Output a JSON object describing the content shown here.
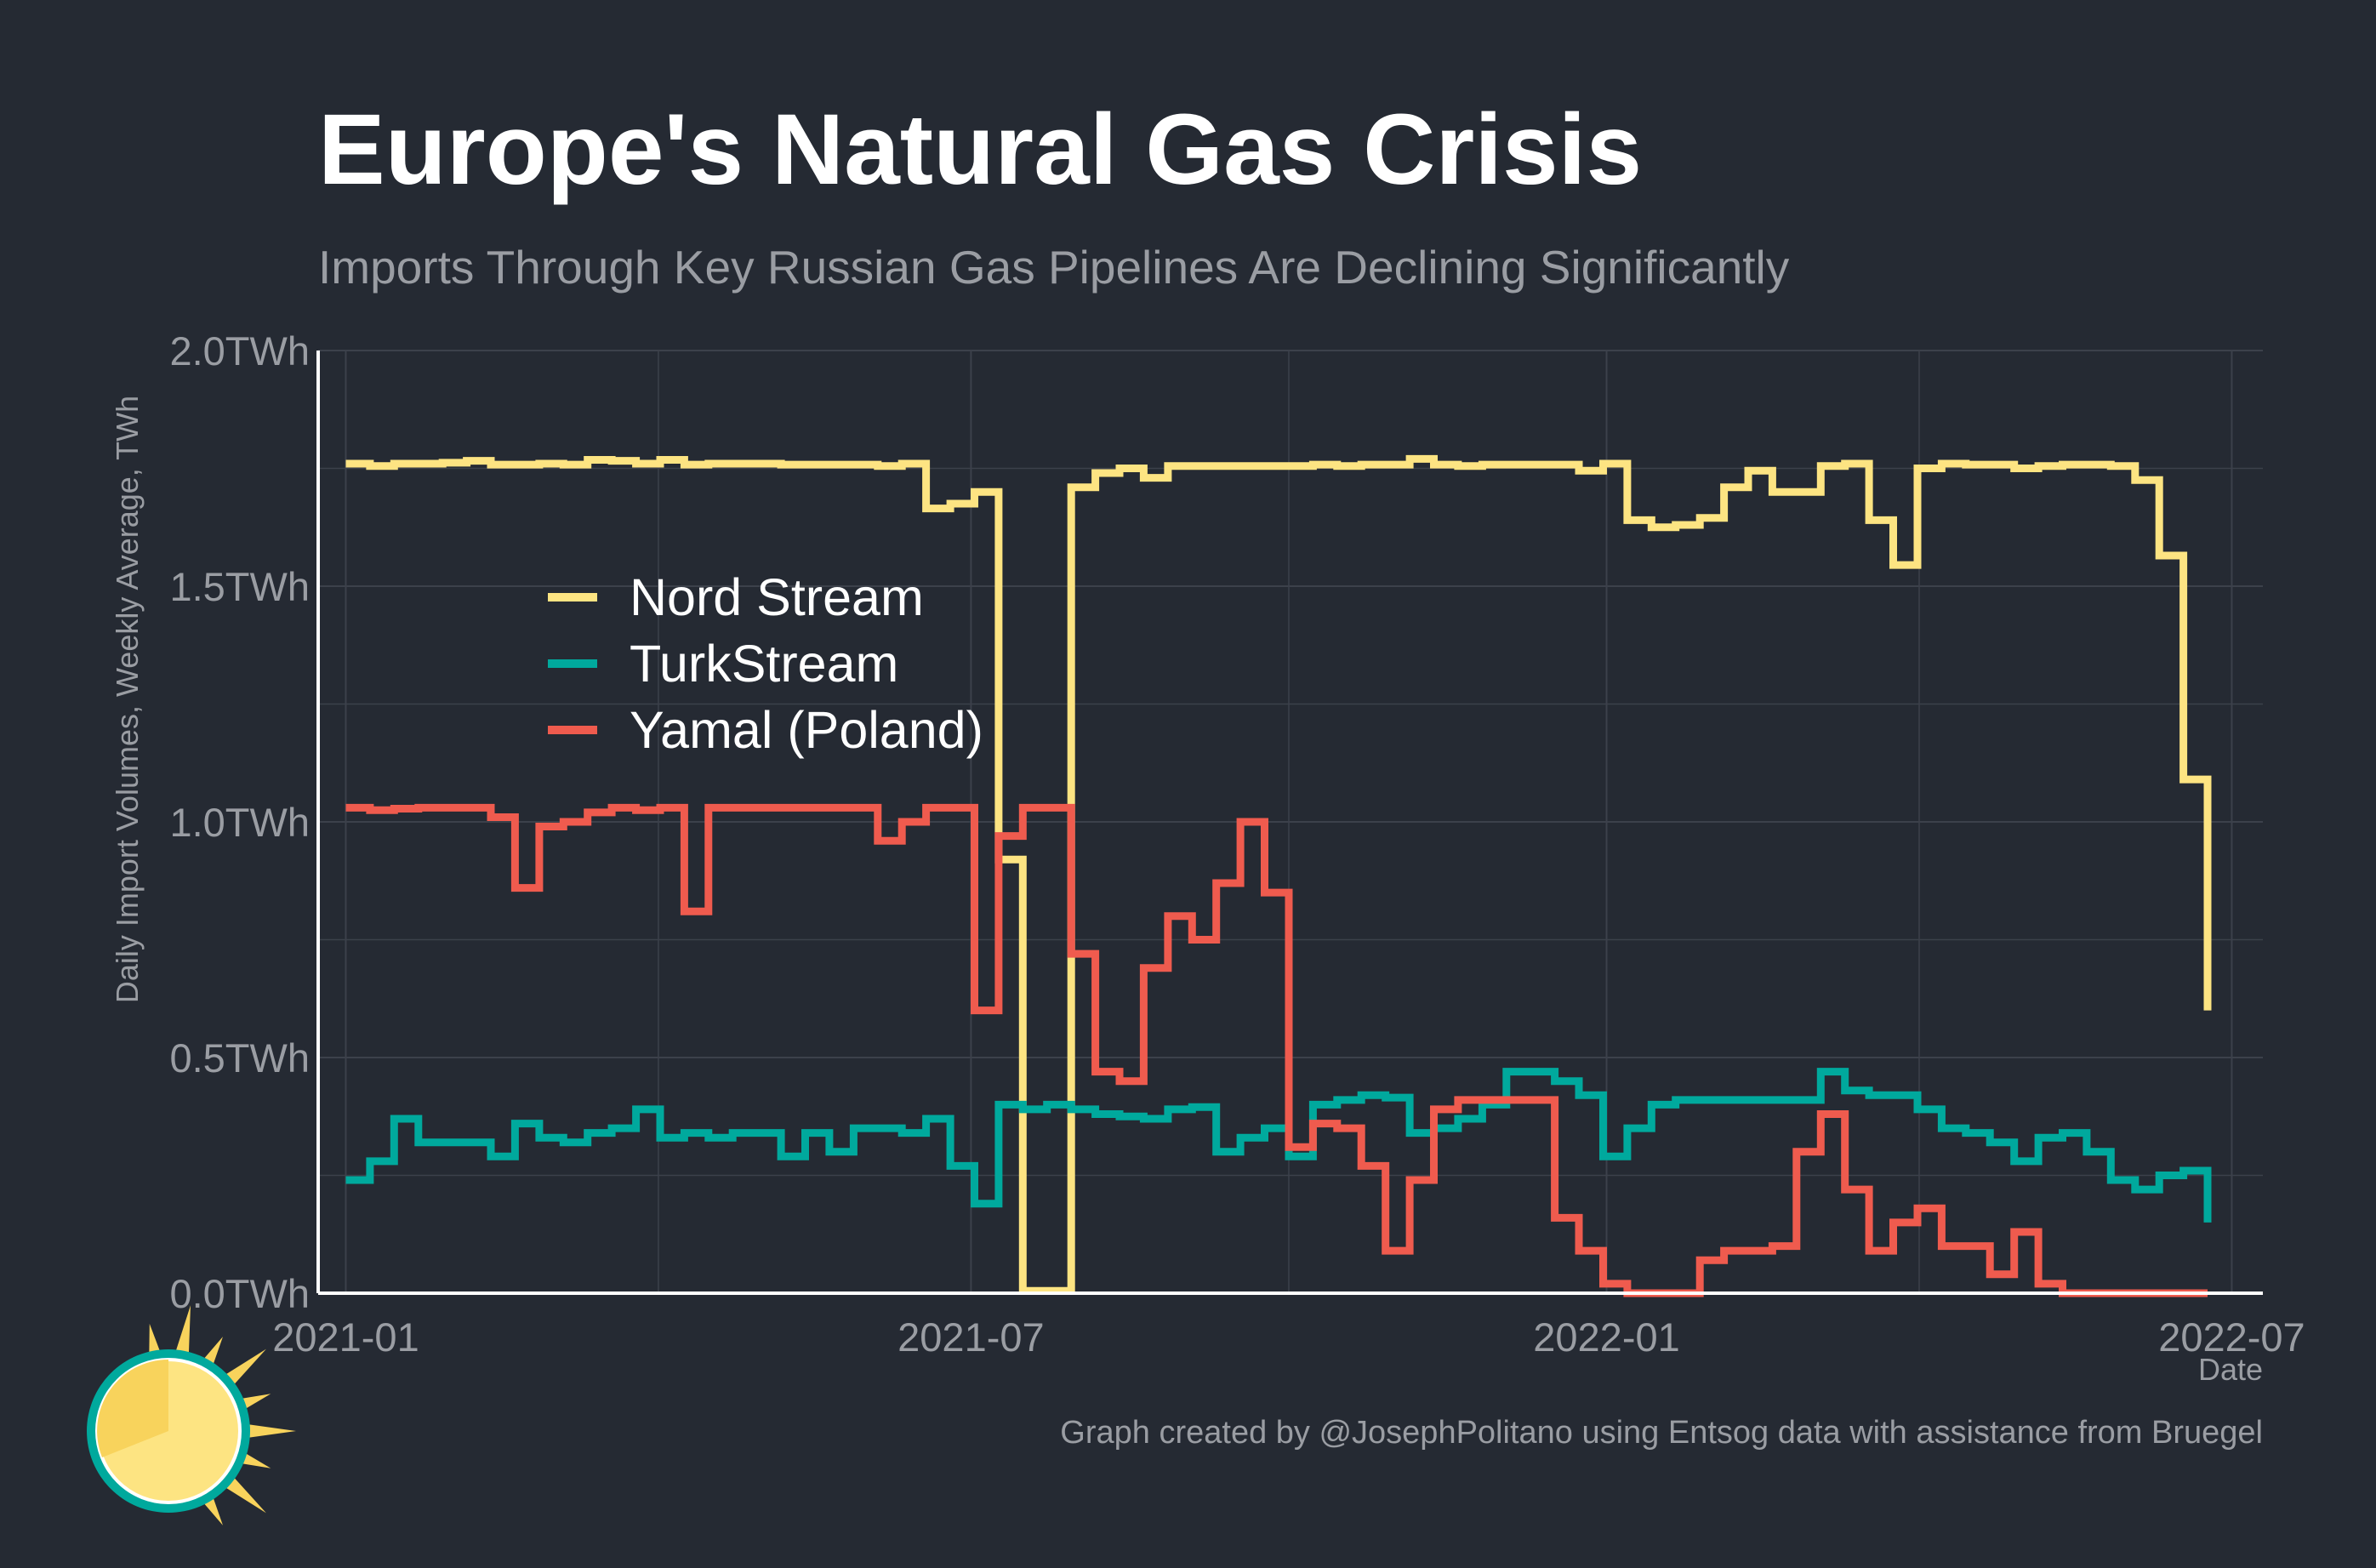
{
  "chart_data": {
    "type": "line",
    "title": "Europe's Natural Gas Crisis",
    "subtitle": "Imports Through Key Russian Gas Pipelines Are Declining Significantly",
    "xlabel": "Date",
    "ylabel": "Daily Import Volumes, Weekly Average, TWh",
    "caption": "Graph created by @JosephPolitano using Entsog data with assistance from Bruegel",
    "ylim": [
      0,
      2.0
    ],
    "xlim": [
      "2020-12-24",
      "2022-07-10"
    ],
    "x_ticks": [
      "2021-01-01",
      "2021-07-01",
      "2022-01-01",
      "2022-07-01"
    ],
    "x_tick_labels": [
      "2021-01",
      "2021-07",
      "2022-01",
      "2022-07"
    ],
    "y_ticks": [
      0,
      0.5,
      1.0,
      1.5,
      2.0
    ],
    "y_tick_labels": [
      "0.0TWh",
      "0.5TWh",
      "1.0TWh",
      "1.5TWh",
      "2.0TWh"
    ],
    "grid": true,
    "legend_position": "inside-left",
    "series": [
      {
        "name": "Nord Stream",
        "color": "#fde482",
        "points": [
          [
            "2021-01-01",
            1.76
          ],
          [
            "2021-01-08",
            1.755
          ],
          [
            "2021-01-15",
            1.76
          ],
          [
            "2021-01-22",
            1.76
          ],
          [
            "2021-01-29",
            1.762
          ],
          [
            "2021-02-05",
            1.766
          ],
          [
            "2021-02-12",
            1.758
          ],
          [
            "2021-02-19",
            1.758
          ],
          [
            "2021-02-26",
            1.76
          ],
          [
            "2021-03-05",
            1.758
          ],
          [
            "2021-03-12",
            1.768
          ],
          [
            "2021-03-19",
            1.766
          ],
          [
            "2021-03-26",
            1.76
          ],
          [
            "2021-04-02",
            1.768
          ],
          [
            "2021-04-09",
            1.758
          ],
          [
            "2021-04-16",
            1.76
          ],
          [
            "2021-04-23",
            1.76
          ],
          [
            "2021-04-30",
            1.76
          ],
          [
            "2021-05-07",
            1.758
          ],
          [
            "2021-05-14",
            1.758
          ],
          [
            "2021-05-21",
            1.758
          ],
          [
            "2021-05-28",
            1.758
          ],
          [
            "2021-06-04",
            1.755
          ],
          [
            "2021-06-11",
            1.76
          ],
          [
            "2021-06-18",
            1.665
          ],
          [
            "2021-06-25",
            1.675
          ],
          [
            "2021-07-02",
            1.7
          ],
          [
            "2021-07-09",
            0.92
          ],
          [
            "2021-07-16",
            0.005
          ],
          [
            "2021-07-23",
            0.005
          ],
          [
            "2021-07-30",
            1.71
          ],
          [
            "2021-08-06",
            1.74
          ],
          [
            "2021-08-13",
            1.75
          ],
          [
            "2021-08-20",
            1.73
          ],
          [
            "2021-08-27",
            1.755
          ],
          [
            "2021-09-03",
            1.755
          ],
          [
            "2021-09-10",
            1.755
          ],
          [
            "2021-09-17",
            1.755
          ],
          [
            "2021-09-24",
            1.755
          ],
          [
            "2021-10-01",
            1.755
          ],
          [
            "2021-10-08",
            1.758
          ],
          [
            "2021-10-15",
            1.755
          ],
          [
            "2021-10-22",
            1.758
          ],
          [
            "2021-10-29",
            1.758
          ],
          [
            "2021-11-05",
            1.77
          ],
          [
            "2021-11-12",
            1.758
          ],
          [
            "2021-11-19",
            1.755
          ],
          [
            "2021-11-26",
            1.758
          ],
          [
            "2021-12-03",
            1.758
          ],
          [
            "2021-12-10",
            1.758
          ],
          [
            "2021-12-17",
            1.758
          ],
          [
            "2021-12-24",
            1.745
          ],
          [
            "2021-12-31",
            1.76
          ],
          [
            "2022-01-07",
            1.64
          ],
          [
            "2022-01-14",
            1.625
          ],
          [
            "2022-01-21",
            1.63
          ],
          [
            "2022-01-28",
            1.645
          ],
          [
            "2022-02-04",
            1.71
          ],
          [
            "2022-02-11",
            1.745
          ],
          [
            "2022-02-18",
            1.7
          ],
          [
            "2022-02-25",
            1.7
          ],
          [
            "2022-03-04",
            1.755
          ],
          [
            "2022-03-11",
            1.76
          ],
          [
            "2022-03-18",
            1.64
          ],
          [
            "2022-03-25",
            1.545
          ],
          [
            "2022-04-01",
            1.75
          ],
          [
            "2022-04-08",
            1.76
          ],
          [
            "2022-04-15",
            1.758
          ],
          [
            "2022-04-22",
            1.758
          ],
          [
            "2022-04-29",
            1.75
          ],
          [
            "2022-05-06",
            1.755
          ],
          [
            "2022-05-13",
            1.758
          ],
          [
            "2022-05-20",
            1.758
          ],
          [
            "2022-05-27",
            1.755
          ],
          [
            "2022-06-03",
            1.725
          ],
          [
            "2022-06-10",
            1.565
          ],
          [
            "2022-06-17",
            1.09
          ],
          [
            "2022-06-24",
            0.6
          ]
        ]
      },
      {
        "name": "TurkStream",
        "color": "#00a99d",
        "points": [
          [
            "2021-01-01",
            0.24
          ],
          [
            "2021-01-08",
            0.28
          ],
          [
            "2021-01-15",
            0.37
          ],
          [
            "2021-01-22",
            0.32
          ],
          [
            "2021-01-29",
            0.32
          ],
          [
            "2021-02-05",
            0.32
          ],
          [
            "2021-02-12",
            0.29
          ],
          [
            "2021-02-19",
            0.36
          ],
          [
            "2021-02-26",
            0.33
          ],
          [
            "2021-03-05",
            0.32
          ],
          [
            "2021-03-12",
            0.34
          ],
          [
            "2021-03-19",
            0.35
          ],
          [
            "2021-03-26",
            0.39
          ],
          [
            "2021-04-02",
            0.33
          ],
          [
            "2021-04-09",
            0.34
          ],
          [
            "2021-04-16",
            0.33
          ],
          [
            "2021-04-23",
            0.34
          ],
          [
            "2021-04-30",
            0.34
          ],
          [
            "2021-05-07",
            0.29
          ],
          [
            "2021-05-14",
            0.34
          ],
          [
            "2021-05-21",
            0.3
          ],
          [
            "2021-05-28",
            0.35
          ],
          [
            "2021-06-04",
            0.35
          ],
          [
            "2021-06-11",
            0.34
          ],
          [
            "2021-06-18",
            0.37
          ],
          [
            "2021-06-25",
            0.27
          ],
          [
            "2021-07-02",
            0.19
          ],
          [
            "2021-07-09",
            0.4
          ],
          [
            "2021-07-16",
            0.39
          ],
          [
            "2021-07-23",
            0.4
          ],
          [
            "2021-07-30",
            0.39
          ],
          [
            "2021-08-06",
            0.38
          ],
          [
            "2021-08-13",
            0.375
          ],
          [
            "2021-08-20",
            0.37
          ],
          [
            "2021-08-27",
            0.39
          ],
          [
            "2021-09-03",
            0.395
          ],
          [
            "2021-09-10",
            0.3
          ],
          [
            "2021-09-17",
            0.33
          ],
          [
            "2021-09-24",
            0.35
          ],
          [
            "2021-10-01",
            0.29
          ],
          [
            "2021-10-08",
            0.4
          ],
          [
            "2021-10-15",
            0.41
          ],
          [
            "2021-10-22",
            0.42
          ],
          [
            "2021-10-29",
            0.415
          ],
          [
            "2021-11-05",
            0.34
          ],
          [
            "2021-11-12",
            0.35
          ],
          [
            "2021-11-19",
            0.37
          ],
          [
            "2021-11-26",
            0.4
          ],
          [
            "2021-12-03",
            0.47
          ],
          [
            "2021-12-10",
            0.47
          ],
          [
            "2021-12-17",
            0.45
          ],
          [
            "2021-12-24",
            0.42
          ],
          [
            "2021-12-31",
            0.29
          ],
          [
            "2022-01-07",
            0.35
          ],
          [
            "2022-01-14",
            0.4
          ],
          [
            "2022-01-21",
            0.41
          ],
          [
            "2022-01-28",
            0.41
          ],
          [
            "2022-02-04",
            0.41
          ],
          [
            "2022-02-11",
            0.41
          ],
          [
            "2022-02-18",
            0.41
          ],
          [
            "2022-02-25",
            0.41
          ],
          [
            "2022-03-04",
            0.47
          ],
          [
            "2022-03-11",
            0.43
          ],
          [
            "2022-03-18",
            0.42
          ],
          [
            "2022-03-25",
            0.42
          ],
          [
            "2022-04-01",
            0.39
          ],
          [
            "2022-04-08",
            0.35
          ],
          [
            "2022-04-15",
            0.34
          ],
          [
            "2022-04-22",
            0.32
          ],
          [
            "2022-04-29",
            0.28
          ],
          [
            "2022-05-06",
            0.33
          ],
          [
            "2022-05-13",
            0.34
          ],
          [
            "2022-05-20",
            0.3
          ],
          [
            "2022-05-27",
            0.24
          ],
          [
            "2022-06-03",
            0.22
          ],
          [
            "2022-06-10",
            0.25
          ],
          [
            "2022-06-17",
            0.26
          ],
          [
            "2022-06-24",
            0.15
          ]
        ]
      },
      {
        "name": "Yamal (Poland)",
        "color": "#ef5b4e",
        "points": [
          [
            "2021-01-01",
            1.03
          ],
          [
            "2021-01-08",
            1.025
          ],
          [
            "2021-01-15",
            1.028
          ],
          [
            "2021-01-22",
            1.03
          ],
          [
            "2021-01-29",
            1.03
          ],
          [
            "2021-02-05",
            1.03
          ],
          [
            "2021-02-12",
            1.01
          ],
          [
            "2021-02-19",
            0.86
          ],
          [
            "2021-02-26",
            0.99
          ],
          [
            "2021-03-05",
            1.0
          ],
          [
            "2021-03-12",
            1.02
          ],
          [
            "2021-03-19",
            1.03
          ],
          [
            "2021-03-26",
            1.025
          ],
          [
            "2021-04-02",
            1.03
          ],
          [
            "2021-04-09",
            0.81
          ],
          [
            "2021-04-16",
            1.03
          ],
          [
            "2021-04-23",
            1.03
          ],
          [
            "2021-04-30",
            1.03
          ],
          [
            "2021-05-07",
            1.03
          ],
          [
            "2021-05-14",
            1.03
          ],
          [
            "2021-05-21",
            1.03
          ],
          [
            "2021-05-28",
            1.03
          ],
          [
            "2021-06-04",
            0.96
          ],
          [
            "2021-06-11",
            1.0
          ],
          [
            "2021-06-18",
            1.03
          ],
          [
            "2021-06-25",
            1.03
          ],
          [
            "2021-07-02",
            0.6
          ],
          [
            "2021-07-09",
            0.97
          ],
          [
            "2021-07-16",
            1.03
          ],
          [
            "2021-07-23",
            1.03
          ],
          [
            "2021-07-30",
            0.72
          ],
          [
            "2021-08-06",
            0.47
          ],
          [
            "2021-08-13",
            0.45
          ],
          [
            "2021-08-20",
            0.69
          ],
          [
            "2021-08-27",
            0.8
          ],
          [
            "2021-09-03",
            0.75
          ],
          [
            "2021-09-10",
            0.87
          ],
          [
            "2021-09-17",
            1.0
          ],
          [
            "2021-09-24",
            0.85
          ],
          [
            "2021-10-01",
            0.31
          ],
          [
            "2021-10-08",
            0.36
          ],
          [
            "2021-10-15",
            0.35
          ],
          [
            "2021-10-22",
            0.27
          ],
          [
            "2021-10-29",
            0.09
          ],
          [
            "2021-11-05",
            0.24
          ],
          [
            "2021-11-12",
            0.39
          ],
          [
            "2021-11-19",
            0.41
          ],
          [
            "2021-11-26",
            0.41
          ],
          [
            "2021-12-03",
            0.41
          ],
          [
            "2021-12-10",
            0.41
          ],
          [
            "2021-12-17",
            0.16
          ],
          [
            "2021-12-24",
            0.09
          ],
          [
            "2021-12-31",
            0.02
          ],
          [
            "2022-01-07",
            0.0
          ],
          [
            "2022-01-14",
            0.0
          ],
          [
            "2022-01-21",
            0.0
          ],
          [
            "2022-01-28",
            0.07
          ],
          [
            "2022-02-04",
            0.09
          ],
          [
            "2022-02-11",
            0.09
          ],
          [
            "2022-02-18",
            0.1
          ],
          [
            "2022-02-25",
            0.3
          ],
          [
            "2022-03-04",
            0.38
          ],
          [
            "2022-03-11",
            0.22
          ],
          [
            "2022-03-18",
            0.09
          ],
          [
            "2022-03-25",
            0.15
          ],
          [
            "2022-04-01",
            0.18
          ],
          [
            "2022-04-08",
            0.1
          ],
          [
            "2022-04-15",
            0.1
          ],
          [
            "2022-04-22",
            0.04
          ],
          [
            "2022-04-29",
            0.13
          ],
          [
            "2022-05-06",
            0.02
          ],
          [
            "2022-05-13",
            0.0
          ],
          [
            "2022-05-20",
            0.0
          ],
          [
            "2022-05-27",
            0.0
          ],
          [
            "2022-06-03",
            0.0
          ],
          [
            "2022-06-10",
            0.0
          ],
          [
            "2022-06-17",
            0.0
          ],
          [
            "2022-06-24",
            0.0
          ]
        ]
      }
    ]
  }
}
